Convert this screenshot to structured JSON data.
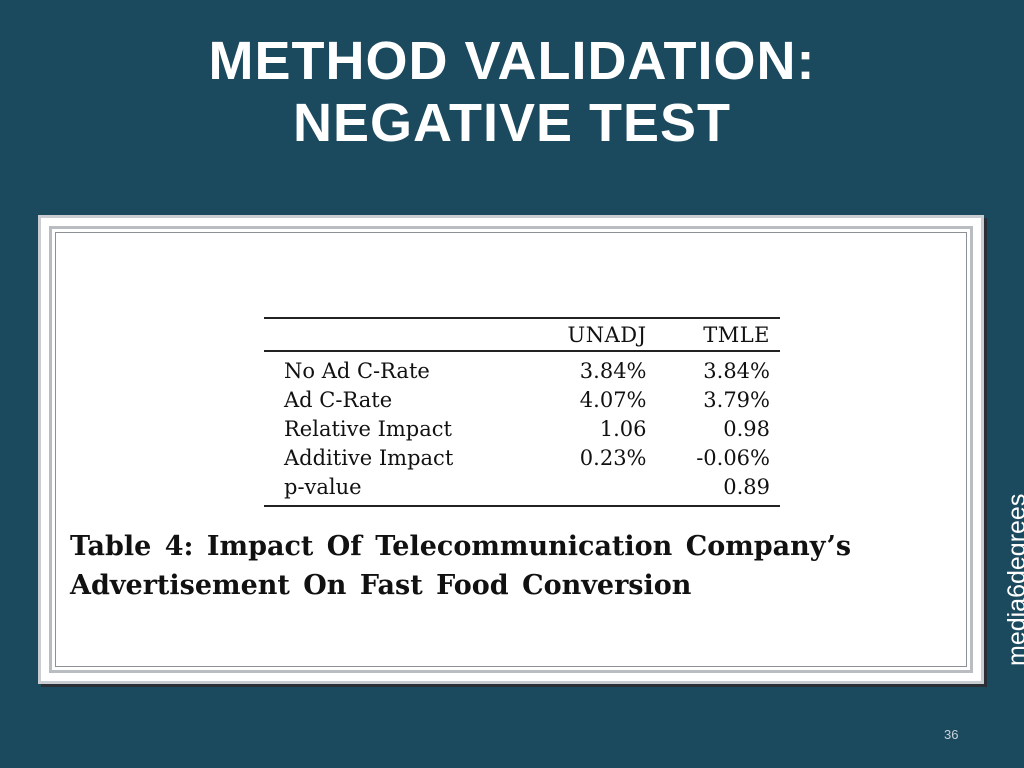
{
  "slide": {
    "title_line1": "METHOD VALIDATION:",
    "title_line2": "NEGATIVE TEST",
    "page_number": "36",
    "brand": "media6degrees"
  },
  "table": {
    "columns": [
      "",
      "UNADJ",
      "TMLE"
    ],
    "rows": [
      {
        "label": "No Ad C-Rate",
        "unadj": "3.84%",
        "tmle": "3.84%"
      },
      {
        "label": "Ad C-Rate",
        "unadj": "4.07%",
        "tmle": "3.79%"
      },
      {
        "label": "Relative Impact",
        "unadj": "1.06",
        "tmle": "0.98"
      },
      {
        "label": "Additive Impact",
        "unadj": "0.23%",
        "tmle": "-0.06%"
      },
      {
        "label": "p-value",
        "unadj": "",
        "tmle": "0.89"
      }
    ],
    "caption_line1": "Table 4:  Impact Of Telecommunication Company’s",
    "caption_line2": "Advertisement On Fast Food Conversion"
  },
  "colors": {
    "background": "#1b4a5f",
    "title": "#ffffff"
  }
}
